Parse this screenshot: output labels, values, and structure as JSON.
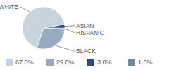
{
  "chart_data": {
    "type": "pie",
    "categories": [
      "WHITE",
      "BLACK",
      "ASIAN",
      "HISPANIC"
    ],
    "values": [
      67,
      29,
      3,
      1
    ],
    "value_labels": [
      "67.0%",
      "29.0%",
      "3.0%",
      "1.0%"
    ],
    "colors": [
      "#c9d3dd",
      "#96abbf",
      "#2f4c6c",
      "#6d89a4"
    ],
    "legend": "bottom"
  }
}
